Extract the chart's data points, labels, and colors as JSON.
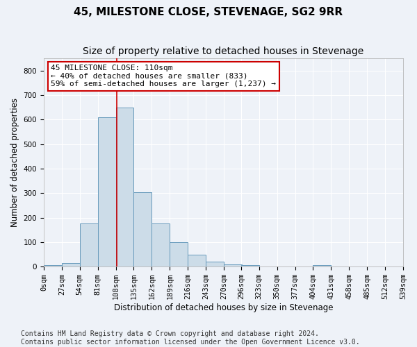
{
  "title": "45, MILESTONE CLOSE, STEVENAGE, SG2 9RR",
  "subtitle": "Size of property relative to detached houses in Stevenage",
  "xlabel": "Distribution of detached houses by size in Stevenage",
  "ylabel": "Number of detached properties",
  "bin_edges": [
    0,
    27,
    54,
    81,
    108,
    135,
    162,
    189,
    216,
    243,
    270,
    296,
    323,
    350,
    377,
    404,
    431,
    458,
    485,
    512,
    539
  ],
  "bar_heights": [
    5,
    15,
    175,
    610,
    650,
    305,
    175,
    100,
    50,
    20,
    10,
    5,
    2,
    0,
    0,
    5,
    0,
    0,
    0,
    0
  ],
  "bar_color": "#ccdce8",
  "bar_edge_color": "#6699bb",
  "property_size": 110,
  "vline_color": "#cc0000",
  "annotation_line1": "45 MILESTONE CLOSE: 110sqm",
  "annotation_line2": "← 40% of detached houses are smaller (833)",
  "annotation_line3": "59% of semi-detached houses are larger (1,237) →",
  "annotation_box_color": "#ffffff",
  "annotation_box_edge": "#cc0000",
  "ylim": [
    0,
    850
  ],
  "yticks": [
    0,
    100,
    200,
    300,
    400,
    500,
    600,
    700,
    800
  ],
  "tick_labels": [
    "0sqm",
    "27sqm",
    "54sqm",
    "81sqm",
    "108sqm",
    "135sqm",
    "162sqm",
    "189sqm",
    "216sqm",
    "243sqm",
    "270sqm",
    "296sqm",
    "323sqm",
    "350sqm",
    "377sqm",
    "404sqm",
    "431sqm",
    "458sqm",
    "485sqm",
    "512sqm",
    "539sqm"
  ],
  "footer": "Contains HM Land Registry data © Crown copyright and database right 2024.\nContains public sector information licensed under the Open Government Licence v3.0.",
  "background_color": "#eef2f8",
  "grid_color": "#ffffff",
  "title_fontsize": 11,
  "subtitle_fontsize": 10,
  "axis_label_fontsize": 8.5,
  "tick_fontsize": 7.5,
  "annotation_fontsize": 8,
  "footer_fontsize": 7
}
